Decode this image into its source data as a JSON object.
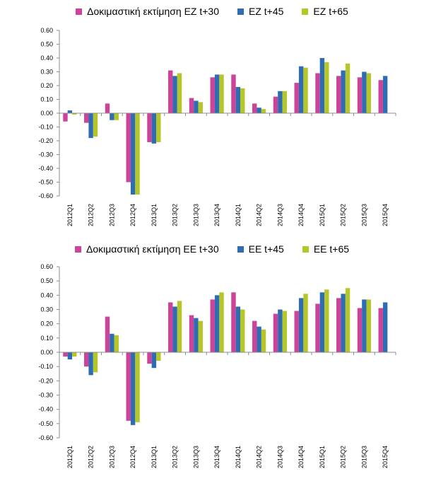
{
  "chart_data": [
    {
      "type": "bar",
      "categories": [
        "2012Q1",
        "2012Q2",
        "2012Q3",
        "2012Q4",
        "2013Q1",
        "2013Q2",
        "2013Q3",
        "2013Q4",
        "2014Q1",
        "2014Q2",
        "2014Q3",
        "2014Q4",
        "2015Q1",
        "2015Q2",
        "2015Q3",
        "2015Q4"
      ],
      "series": [
        {
          "name": "Δοκιμαστική εκτίμηση EZ t+30",
          "color": "#cc4499",
          "values": [
            -0.06,
            -0.07,
            0.07,
            -0.5,
            -0.21,
            0.31,
            0.11,
            0.26,
            0.28,
            0.07,
            0.12,
            0.22,
            0.29,
            0.27,
            0.26,
            0.24
          ]
        },
        {
          "name": "EZ t+45",
          "color": "#2e6db4",
          "values": [
            0.02,
            -0.18,
            -0.05,
            -0.59,
            -0.22,
            0.27,
            0.09,
            0.28,
            0.19,
            0.04,
            0.16,
            0.34,
            0.4,
            0.31,
            0.3,
            0.27
          ]
        },
        {
          "name": "EZ t+65",
          "color": "#b5c628",
          "values": [
            -0.01,
            -0.17,
            -0.05,
            -0.59,
            -0.21,
            0.29,
            0.08,
            0.28,
            0.18,
            0.03,
            0.16,
            0.33,
            0.37,
            0.36,
            0.29,
            null
          ]
        }
      ],
      "yticks": [
        "0.60",
        "0.50",
        "0.40",
        "0.30",
        "0.20",
        "0.10",
        "0.00",
        "-0.10",
        "-0.20",
        "-0.30",
        "-0.40",
        "-0.50",
        "-0.60"
      ],
      "ylim": [
        -0.6,
        0.6
      ],
      "grid": false,
      "legend": "top"
    },
    {
      "type": "bar",
      "categories": [
        "2012Q1",
        "2012Q2",
        "2012Q3",
        "2012Q4",
        "2013Q1",
        "2013Q2",
        "2013Q3",
        "2013Q4",
        "2014Q1",
        "2014Q2",
        "2014Q3",
        "2014Q4",
        "2015Q1",
        "2015Q2",
        "2015Q3",
        "2015Q4"
      ],
      "series": [
        {
          "name": "Δοκιμαστική εκτίμηση EE t+30",
          "color": "#cc4499",
          "values": [
            -0.03,
            -0.1,
            0.25,
            -0.48,
            -0.08,
            0.35,
            0.26,
            0.37,
            0.42,
            0.22,
            0.27,
            0.29,
            0.34,
            0.38,
            0.31,
            0.31
          ]
        },
        {
          "name": "EE t+45",
          "color": "#2e6db4",
          "values": [
            -0.05,
            -0.16,
            0.13,
            -0.51,
            -0.11,
            0.32,
            0.24,
            0.4,
            0.32,
            0.18,
            0.3,
            0.38,
            0.42,
            0.41,
            0.37,
            0.35
          ]
        },
        {
          "name": "EE t+65",
          "color": "#b5c628",
          "values": [
            -0.03,
            -0.14,
            0.12,
            -0.49,
            -0.06,
            0.36,
            0.22,
            0.42,
            0.3,
            0.16,
            0.29,
            0.41,
            0.44,
            0.45,
            0.37,
            null
          ]
        }
      ],
      "yticks": [
        "0.60",
        "0.50",
        "0.40",
        "0.30",
        "0.20",
        "0.10",
        "0.00",
        "-0.10",
        "-0.20",
        "-0.30",
        "-0.40",
        "-0.50",
        "-0.60"
      ],
      "ylim": [
        -0.6,
        0.6
      ],
      "grid": false,
      "legend": "top"
    }
  ]
}
